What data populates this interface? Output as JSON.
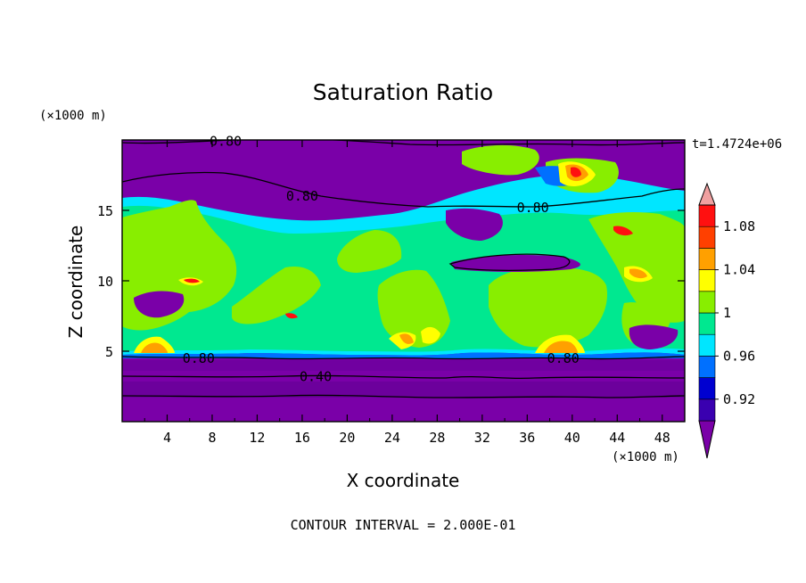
{
  "chart_data": {
    "type": "heatmap",
    "title": "Saturation Ratio",
    "xlabel": "X coordinate",
    "ylabel": "Z coordinate",
    "x_unit": "(×1000 m)",
    "y_unit": "(×1000 m)",
    "xlim": [
      0,
      50
    ],
    "ylim": [
      0,
      20
    ],
    "x_ticks": [
      4,
      8,
      12,
      16,
      20,
      24,
      28,
      32,
      36,
      40,
      44,
      48
    ],
    "y_ticks": [
      5,
      10,
      15
    ],
    "time_label": "t=1.4724e+06",
    "footer": "CONTOUR INTERVAL = 2.000E-01",
    "colorbar": {
      "levels": [
        0.9,
        0.92,
        0.94,
        0.96,
        0.98,
        1.0,
        1.02,
        1.04,
        1.06,
        1.08,
        1.1
      ],
      "labels": [
        "0.92",
        "0.96",
        "1",
        "1.04",
        "1.08"
      ],
      "label_values": [
        0.92,
        0.96,
        1.0,
        1.04,
        1.08
      ],
      "colors": [
        "#7a00a8",
        "#3a00b0",
        "#0000d0",
        "#0070ff",
        "#00e6ff",
        "#00e890",
        "#88ee00",
        "#ffff00",
        "#ffa000",
        "#ff4000",
        "#ff1010",
        "#f0a0a0"
      ]
    },
    "contour_lines": [
      {
        "value": "0.80",
        "z": 19.8
      },
      {
        "value": "0.80",
        "z": 16.2
      },
      {
        "value": "0.80",
        "z": 4.5
      },
      {
        "value": "0.40",
        "z": 3.1
      }
    ],
    "contour_labels": [
      {
        "text": "0.80",
        "x": 9.2,
        "z": 19.9
      },
      {
        "text": "0.80",
        "x": 16.0,
        "z": 16.0
      },
      {
        "text": "0.80",
        "x": 36.5,
        "z": 15.2
      },
      {
        "text": "0.80",
        "x": 6.8,
        "z": 4.5
      },
      {
        "text": "0.80",
        "x": 39.2,
        "z": 4.5
      },
      {
        "text": "0.40",
        "x": 17.2,
        "z": 3.2
      }
    ]
  }
}
